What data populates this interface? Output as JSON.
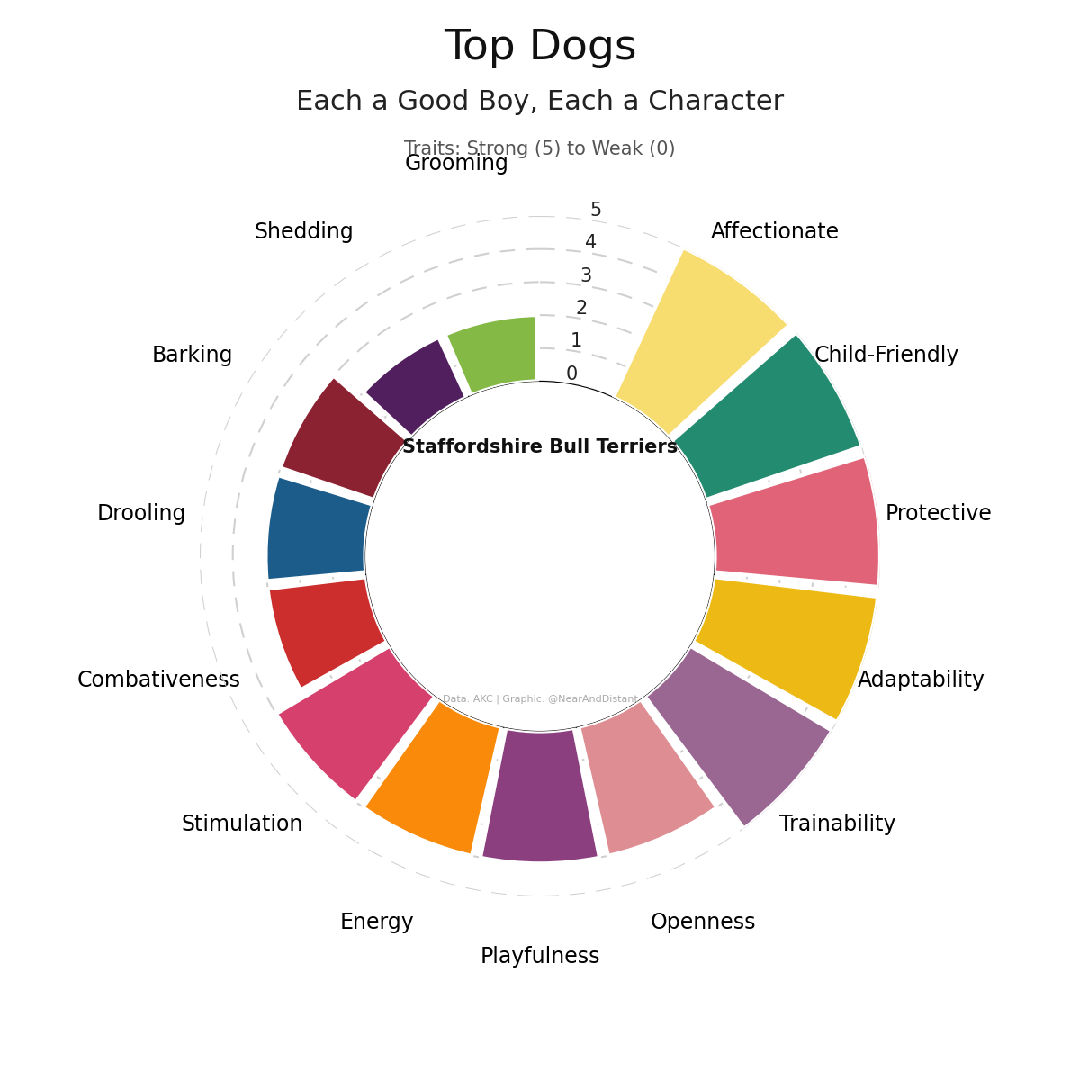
{
  "chart_data": {
    "type": "polar_bar",
    "title": "Top Dogs",
    "subtitle": "Each a Good Boy, Each a Character",
    "axis_label": "Traits: Strong (5) to Weak (0)",
    "center_label": "Staffordshire Bull Terriers",
    "caption": "Data: AKC | Graphic: @NearAndDistant",
    "categories": [
      "Affectionate",
      "Child-Friendly",
      "Protective",
      "Adaptability",
      "Trainability",
      "Openness",
      "Playfulness",
      "Energy",
      "Stimulation",
      "Combativeness",
      "Drooling",
      "Barking",
      "Shedding",
      "Grooming"
    ],
    "values": [
      5,
      5,
      5,
      5,
      5,
      4,
      4,
      4,
      4,
      3,
      3,
      3,
      2,
      2
    ],
    "colors": [
      "#F7DC6F",
      "#238B6F",
      "#E06377",
      "#EDBA15",
      "#9A6692",
      "#DE8D93",
      "#8B3F7F",
      "#F98A0A",
      "#D6406C",
      "#CC2D2D",
      "#1B5C8A",
      "#8B2231",
      "#511F5E",
      "#83B944"
    ],
    "ylim": [
      0,
      5
    ],
    "yticks": [
      0,
      1,
      2,
      3,
      4,
      5
    ],
    "grid": true
  }
}
